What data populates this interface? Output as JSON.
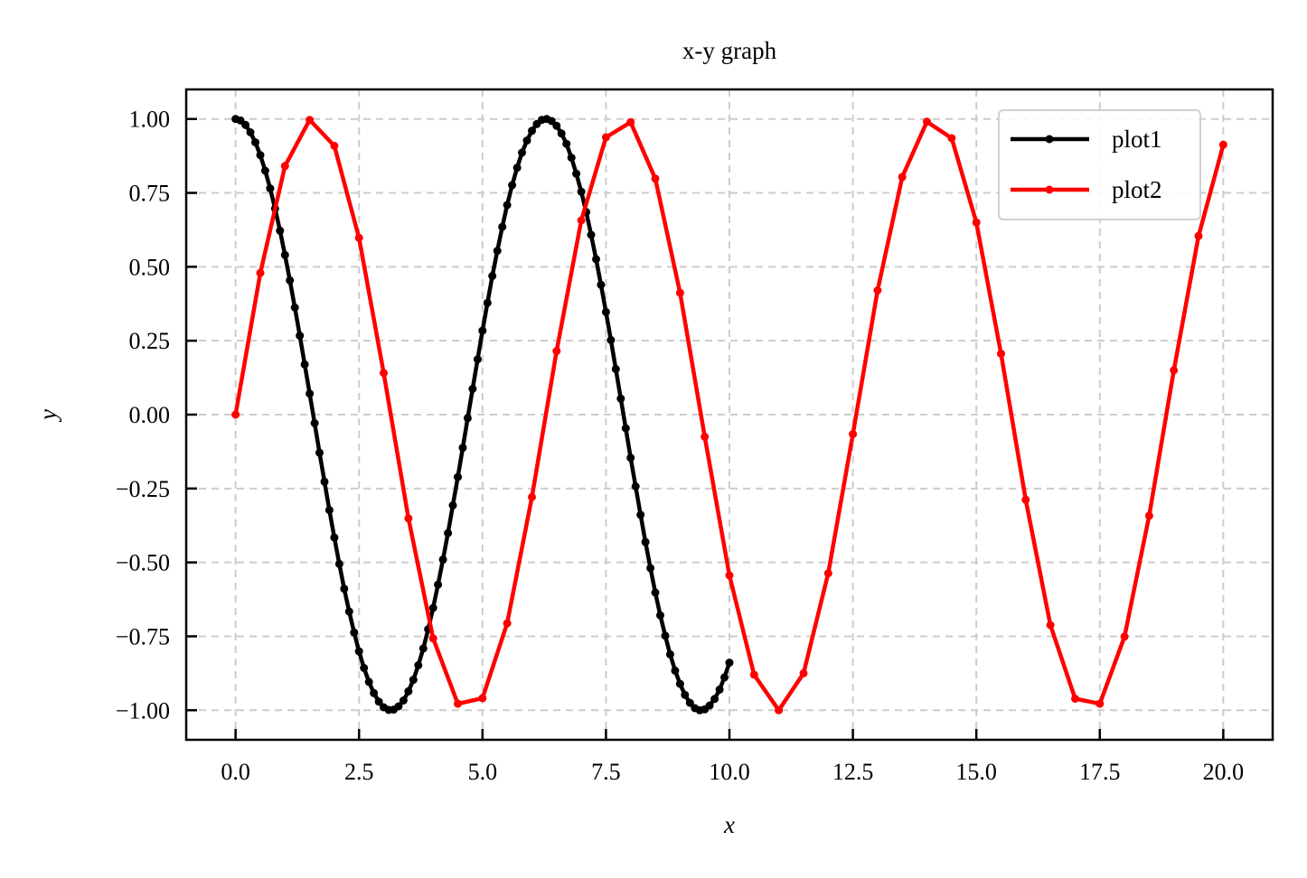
{
  "chart_data": {
    "type": "line",
    "title": "x-y graph",
    "xlabel": "x",
    "ylabel": "y",
    "xlim": [
      -1,
      21
    ],
    "ylim": [
      -1.1,
      1.1
    ],
    "grid": true,
    "legend_placement": "top-right",
    "x_tick_labels": [
      "0.0",
      "2.5",
      "5.0",
      "7.5",
      "10.0",
      "12.5",
      "15.0",
      "17.5",
      "20.0"
    ],
    "y_tick_labels": [
      "1.00",
      "0.75",
      "0.50",
      "0.25",
      "0.00",
      "−0.25",
      "−0.50",
      "−0.75",
      "−1.00"
    ],
    "series": [
      {
        "name": "plot1",
        "color": "#000000",
        "x": [
          0.0,
          0.1,
          0.2,
          0.3,
          0.4,
          0.5,
          0.6,
          0.7,
          0.8,
          0.9,
          1.0,
          1.1,
          1.2,
          1.3,
          1.4,
          1.5,
          1.6,
          1.7,
          1.8,
          1.9,
          2.0,
          2.1,
          2.2,
          2.3,
          2.4,
          2.5,
          2.6,
          2.7,
          2.8,
          2.9,
          3.0,
          3.1,
          3.2,
          3.3,
          3.4,
          3.5,
          3.6,
          3.7,
          3.8,
          3.9,
          4.0,
          4.1,
          4.2,
          4.3,
          4.4,
          4.5,
          4.6,
          4.7,
          4.8,
          4.9,
          5.0,
          5.1,
          5.2,
          5.3,
          5.4,
          5.5,
          5.6,
          5.7,
          5.8,
          5.9,
          6.0,
          6.1,
          6.2,
          6.3,
          6.4,
          6.5,
          6.6,
          6.7,
          6.8,
          6.9,
          7.0,
          7.1,
          7.2,
          7.3,
          7.4,
          7.5,
          7.6,
          7.7,
          7.8,
          7.9,
          8.0,
          8.1,
          8.2,
          8.3,
          8.4,
          8.5,
          8.6,
          8.7,
          8.8,
          8.9,
          9.0,
          9.1,
          9.2,
          9.3,
          9.4,
          9.5,
          9.6,
          9.7,
          9.8,
          9.9,
          10.0
        ],
        "y": [
          1.0,
          0.995,
          0.98,
          0.955,
          0.921,
          0.878,
          0.825,
          0.765,
          0.697,
          0.622,
          0.54,
          0.454,
          0.362,
          0.267,
          0.17,
          0.071,
          -0.029,
          -0.129,
          -0.227,
          -0.323,
          -0.416,
          -0.505,
          -0.589,
          -0.666,
          -0.737,
          -0.801,
          -0.857,
          -0.904,
          -0.942,
          -0.971,
          -0.99,
          -0.999,
          -0.998,
          -0.987,
          -0.967,
          -0.936,
          -0.897,
          -0.848,
          -0.791,
          -0.726,
          -0.654,
          -0.575,
          -0.49,
          -0.401,
          -0.307,
          -0.211,
          -0.112,
          -0.012,
          0.087,
          0.187,
          0.284,
          0.378,
          0.469,
          0.554,
          0.635,
          0.709,
          0.776,
          0.835,
          0.886,
          0.927,
          0.96,
          0.983,
          0.997,
          1.0,
          0.993,
          0.977,
          0.951,
          0.916,
          0.869,
          0.815,
          0.754,
          0.685,
          0.608,
          0.526,
          0.439,
          0.347,
          0.252,
          0.154,
          0.054,
          -0.046,
          -0.146,
          -0.243,
          -0.339,
          -0.431,
          -0.519,
          -0.602,
          -0.679,
          -0.748,
          -0.811,
          -0.866,
          -0.911,
          -0.948,
          -0.975,
          -0.993,
          -1.0,
          -0.997,
          -0.984,
          -0.962,
          -0.93,
          -0.889,
          -0.839
        ]
      },
      {
        "name": "plot2",
        "color": "#ff0000",
        "x": [
          0.0,
          0.5,
          1.0,
          1.5,
          2.0,
          2.5,
          3.0,
          3.5,
          4.0,
          4.5,
          5.0,
          5.5,
          6.0,
          6.5,
          7.0,
          7.5,
          8.0,
          8.5,
          9.0,
          9.5,
          10.0,
          10.5,
          11.0,
          11.5,
          12.0,
          12.5,
          13.0,
          13.5,
          14.0,
          14.5,
          15.0,
          15.5,
          16.0,
          16.5,
          17.0,
          17.5,
          18.0,
          18.5,
          19.0,
          19.5,
          20.0
        ],
        "y": [
          0.0,
          0.479,
          0.841,
          0.997,
          0.909,
          0.598,
          0.141,
          -0.351,
          -0.757,
          -0.978,
          -0.959,
          -0.706,
          -0.279,
          0.215,
          0.657,
          0.938,
          0.989,
          0.798,
          0.412,
          -0.075,
          -0.544,
          -0.88,
          -1.0,
          -0.875,
          -0.537,
          -0.066,
          0.42,
          0.804,
          0.991,
          0.935,
          0.65,
          0.206,
          -0.288,
          -0.712,
          -0.961,
          -0.978,
          -0.751,
          -0.342,
          0.15,
          0.604,
          0.913
        ]
      }
    ]
  }
}
